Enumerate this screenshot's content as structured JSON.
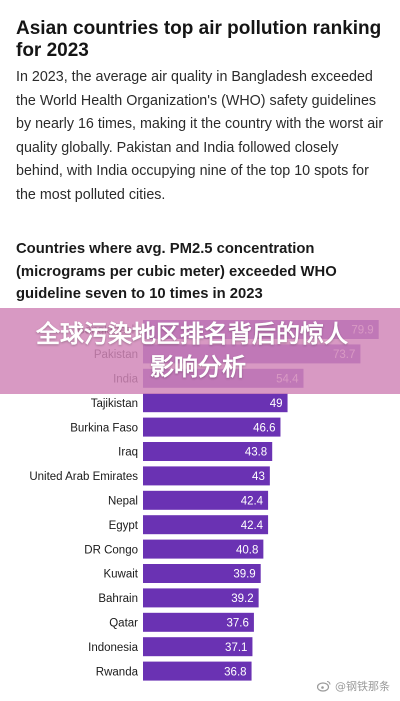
{
  "article": {
    "title": "Asian countries top air pollution ranking for 2023",
    "intro": "In 2023, the average air quality in Bangladesh exceeded the World Health Organization's (WHO) safety guidelines by nearly 16 times, making it the country with the worst air quality globally. Pakistan and India followed closely behind, with India occupying nine of the top 10 spots for the most polluted cities."
  },
  "overlay": {
    "line1": "全球污染地区排名背后的惊人",
    "line2": "影响分析"
  },
  "watermark": {
    "text": "@钢铁那条",
    "icon": "weibo-icon"
  },
  "colors": {
    "bar": "#6a32b3",
    "label": "#1a1a1a",
    "value_text": "#ffffff",
    "overlay": "#d086b8"
  },
  "chart_data": {
    "type": "bar",
    "orientation": "horizontal",
    "title": "Countries where avg. PM2.5 concentration (micrograms per cubic meter) exceeded WHO guideline seven to 10 times in 2023",
    "categories": [
      "Bangladesh",
      "Pakistan",
      "India",
      "Tajikistan",
      "Burkina Faso",
      "Iraq",
      "United Arab Emirates",
      "Nepal",
      "Egypt",
      "DR Congo",
      "Kuwait",
      "Bahrain",
      "Qatar",
      "Indonesia",
      "Rwanda"
    ],
    "values": [
      79.9,
      73.7,
      54.4,
      49,
      46.6,
      43.8,
      43,
      42.4,
      42.4,
      40.8,
      39.9,
      39.2,
      37.6,
      37.1,
      36.8
    ],
    "value_labels": [
      "79.9",
      "73.7",
      "54.4",
      "49",
      "46.6",
      "43.8",
      "43",
      "42.4",
      "42.4",
      "40.8",
      "39.9",
      "39.2",
      "37.6",
      "37.1",
      "36.8"
    ],
    "xlim": [
      0,
      80
    ],
    "grid": false,
    "legend": "none"
  }
}
